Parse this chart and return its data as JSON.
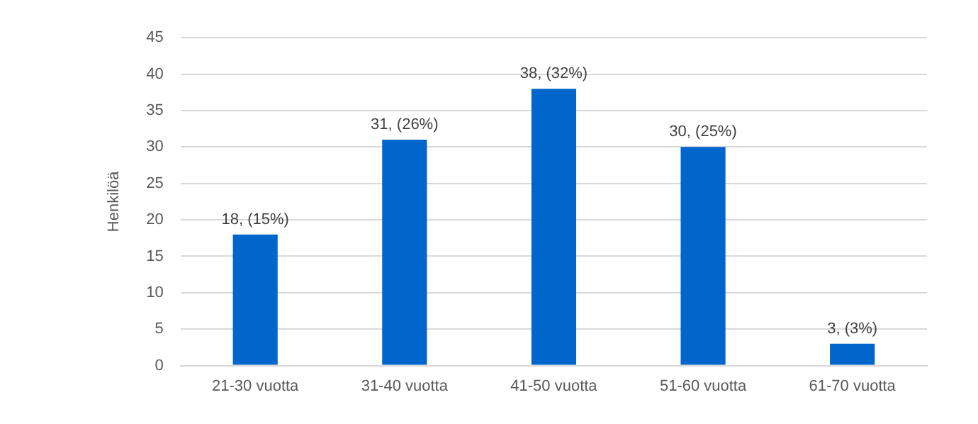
{
  "chart_data": {
    "type": "bar",
    "ylabel": "Henkilöä",
    "categories": [
      "21-30 vuotta",
      "31-40 vuotta",
      "41-50 vuotta",
      "51-60 vuotta",
      "61-70 vuotta"
    ],
    "values": [
      18,
      31,
      38,
      30,
      3
    ],
    "value_labels": [
      "18, (15%)",
      "31, (26%)",
      "38, (32%)",
      "30, (25%)",
      "3, (3%)"
    ],
    "color": "#0066cc",
    "ylim": [
      0,
      45
    ],
    "yticks": [
      0,
      5,
      10,
      15,
      20,
      25,
      30,
      35,
      40,
      45
    ],
    "grid": "y",
    "legend": false
  }
}
